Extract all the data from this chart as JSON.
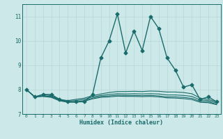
{
  "title": "",
  "xlabel": "Humidex (Indice chaleur)",
  "ylabel": "",
  "background_color": "#cde8e8",
  "grid_color": "#b8d8d8",
  "line_color": "#1a6b6b",
  "xlim": [
    -0.5,
    23.5
  ],
  "ylim": [
    7.0,
    11.5
  ],
  "yticks": [
    7,
    8,
    9,
    10,
    11
  ],
  "xticks": [
    0,
    1,
    2,
    3,
    4,
    5,
    6,
    7,
    8,
    9,
    10,
    11,
    12,
    13,
    14,
    15,
    16,
    17,
    18,
    19,
    20,
    21,
    22,
    23
  ],
  "series": [
    {
      "x": [
        0,
        1,
        2,
        3,
        4,
        5,
        6,
        7,
        8,
        9,
        10,
        11,
        12,
        13,
        14,
        15,
        16,
        17,
        18,
        19,
        20,
        21,
        22,
        23
      ],
      "y": [
        8.0,
        7.7,
        7.8,
        7.8,
        7.6,
        7.5,
        7.5,
        7.5,
        7.8,
        9.3,
        10.0,
        11.1,
        9.5,
        10.4,
        9.6,
        11.0,
        10.5,
        9.3,
        8.8,
        8.1,
        8.2,
        7.6,
        7.7,
        7.5
      ],
      "marker": "D",
      "markersize": 2.5,
      "linewidth": 1.0
    },
    {
      "x": [
        0,
        1,
        2,
        3,
        4,
        5,
        6,
        7,
        8,
        9,
        10,
        11,
        12,
        13,
        14,
        15,
        16,
        17,
        18,
        19,
        20,
        21,
        22,
        23
      ],
      "y": [
        8.0,
        7.7,
        7.8,
        7.75,
        7.6,
        7.55,
        7.6,
        7.65,
        7.75,
        7.82,
        7.88,
        7.92,
        7.92,
        7.93,
        7.92,
        7.94,
        7.93,
        7.9,
        7.9,
        7.88,
        7.83,
        7.65,
        7.6,
        7.5
      ],
      "marker": null,
      "markersize": 0,
      "linewidth": 0.8
    },
    {
      "x": [
        0,
        1,
        2,
        3,
        4,
        5,
        6,
        7,
        8,
        9,
        10,
        11,
        12,
        13,
        14,
        15,
        16,
        17,
        18,
        19,
        20,
        21,
        22,
        23
      ],
      "y": [
        8.0,
        7.7,
        7.75,
        7.72,
        7.58,
        7.53,
        7.55,
        7.6,
        7.7,
        7.76,
        7.8,
        7.83,
        7.82,
        7.83,
        7.82,
        7.83,
        7.82,
        7.78,
        7.78,
        7.76,
        7.72,
        7.58,
        7.55,
        7.45
      ],
      "marker": null,
      "markersize": 0,
      "linewidth": 0.8
    },
    {
      "x": [
        0,
        1,
        2,
        3,
        4,
        5,
        6,
        7,
        8,
        9,
        10,
        11,
        12,
        13,
        14,
        15,
        16,
        17,
        18,
        19,
        20,
        21,
        22,
        23
      ],
      "y": [
        8.0,
        7.7,
        7.73,
        7.7,
        7.56,
        7.5,
        7.5,
        7.55,
        7.65,
        7.72,
        7.74,
        7.77,
        7.76,
        7.76,
        7.75,
        7.76,
        7.74,
        7.7,
        7.7,
        7.68,
        7.64,
        7.52,
        7.5,
        7.4
      ],
      "marker": null,
      "markersize": 0,
      "linewidth": 0.8
    },
    {
      "x": [
        0,
        1,
        2,
        3,
        4,
        5,
        6,
        7,
        8,
        9,
        10,
        11,
        12,
        13,
        14,
        15,
        16,
        17,
        18,
        19,
        20,
        21,
        22,
        23
      ],
      "y": [
        8.0,
        7.7,
        7.72,
        7.68,
        7.54,
        7.48,
        7.48,
        7.52,
        7.62,
        7.68,
        7.7,
        7.73,
        7.72,
        7.72,
        7.71,
        7.72,
        7.7,
        7.66,
        7.65,
        7.63,
        7.59,
        7.48,
        7.46,
        7.38
      ],
      "marker": null,
      "markersize": 0,
      "linewidth": 0.8
    }
  ]
}
